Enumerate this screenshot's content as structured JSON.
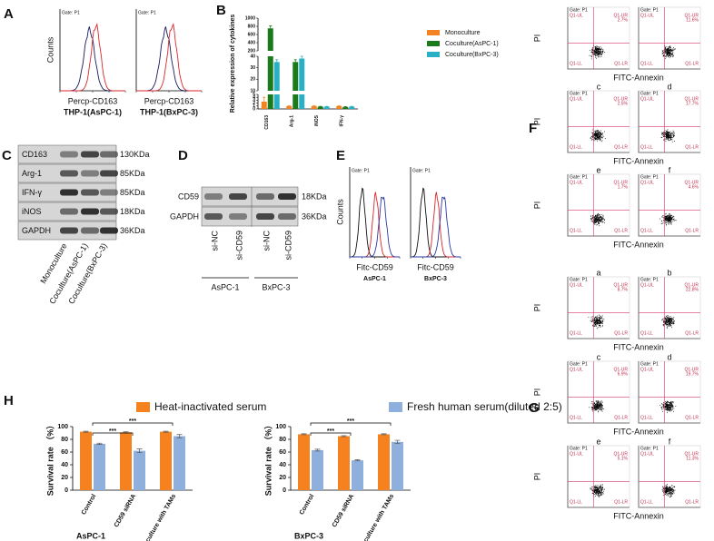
{
  "A": {
    "label": "A",
    "ylabel": "Counts",
    "plots": [
      {
        "gate": "Gate: P1",
        "xlabel": "Percp-CD163",
        "caption": "THP-1(AsPC-1)"
      },
      {
        "gate": "Gate: P1",
        "xlabel": "Percp-CD163",
        "caption": "THP-1(BxPC-3)"
      }
    ]
  },
  "B": {
    "label": "B",
    "chart": {
      "type": "bar",
      "ylabel": "Relative expression of cytokines",
      "categories": [
        "CD163",
        "Arg-1",
        "iNOS",
        "IFN-γ"
      ],
      "series": [
        {
          "name": "Monoculture",
          "color": "#f58220",
          "values": [
            2.5,
            1,
            1,
            1
          ],
          "errors": [
            1.5,
            0.1,
            0.1,
            0.1
          ]
        },
        {
          "name": "Coculture(AsPC-1)",
          "color": "#1b7a1b",
          "values": [
            750,
            35,
            0.8,
            0.7
          ],
          "errors": [
            60,
            2,
            0.1,
            0.1
          ]
        },
        {
          "name": "Coculture(BxPC-3)",
          "color": "#2ab0c5",
          "values": [
            35,
            38,
            0.8,
            0.8
          ],
          "errors": [
            2,
            2,
            0.1,
            0.1
          ]
        }
      ],
      "segments": [
        {
          "ylim": [
            0,
            5
          ],
          "yticks": [
            0,
            1,
            2,
            3,
            4,
            5
          ]
        },
        {
          "ylim": [
            10,
            40
          ],
          "yticks": [
            10,
            20,
            30,
            40
          ]
        },
        {
          "ylim": [
            200,
            1000
          ],
          "yticks": [
            200,
            400,
            600,
            800,
            1000
          ]
        }
      ]
    }
  },
  "C": {
    "label": "C",
    "rows": [
      {
        "name": "CD163",
        "size": "130KDa"
      },
      {
        "name": "Arg-1",
        "size": "85KDa"
      },
      {
        "name": "IFN-γ",
        "size": "85KDa"
      },
      {
        "name": "iNOS",
        "size": "18KDa"
      },
      {
        "name": "GAPDH",
        "size": "36KDa"
      }
    ],
    "lanes": [
      "Monoculture",
      "Coculture(AsPC-1)",
      "Coculture(BxPC-3)"
    ]
  },
  "D": {
    "label": "D",
    "rows": [
      {
        "name": "CD59",
        "size": "18KDa"
      },
      {
        "name": "GAPDH",
        "size": "36KDa"
      }
    ],
    "lanes": [
      "si-NC",
      "si-CD59",
      "si-NC",
      "si-CD59"
    ],
    "groups": [
      "AsPC-1",
      "BxPC-3"
    ]
  },
  "E": {
    "label": "E",
    "ylabel": "Counts",
    "plots": [
      {
        "gate": "Gate: P1",
        "xlabel": "Fitc-CD59",
        "caption": "AsPC-1"
      },
      {
        "gate": "Gate: P1",
        "xlabel": "Fitc-CD59",
        "caption": "BxPC-3"
      }
    ]
  },
  "F": {
    "label": "F",
    "ylabel": "PI",
    "xlabel": "FITC-Annexin",
    "gate": "Gate: P1",
    "quadrants": [
      "Q1-UL",
      "Q1-UR",
      "Q1-LL",
      "Q1-LR"
    ],
    "rows": [
      [
        {
          "ur": "2.7%"
        },
        {
          "ur": "11.6%"
        }
      ],
      [
        {
          "letter": "c",
          "ur": "2.5%"
        },
        {
          "letter": "d",
          "ur": "17.7%"
        }
      ],
      [
        {
          "letter": "e",
          "ur": "1.7%"
        },
        {
          "letter": "f",
          "ur": "4.6%"
        }
      ]
    ]
  },
  "G": {
    "label": "G",
    "ylabel": "PI",
    "xlabel": "FITC-Annexin",
    "gate": "Gate: P1",
    "quadrants": [
      "Q1-UL",
      "Q1-UR",
      "Q1-LL",
      "Q1-LR"
    ],
    "rows": [
      [
        {
          "letter": "a",
          "ur": "8.7%"
        },
        {
          "letter": "b",
          "ur": "22.8%"
        }
      ],
      [
        {
          "letter": "c",
          "ur": "6.9%"
        },
        {
          "letter": "d",
          "ur": "19.7%"
        }
      ],
      [
        {
          "letter": "e",
          "ur": "5.1%"
        },
        {
          "letter": "f",
          "ur": "11.3%"
        }
      ]
    ]
  },
  "H": {
    "label": "H",
    "legend": [
      {
        "name": "Heat-inactivated serum",
        "color": "#f5821f"
      },
      {
        "name": "Fresh human serum(diluted 2:5)",
        "color": "#8fb0dc"
      }
    ],
    "charts": [
      {
        "type": "bar",
        "title": "AsPC-1",
        "ylabel": "Survival rate （%）",
        "categories": [
          "Control",
          "CD59 siRNA",
          "Coculture with TAMs"
        ],
        "ylim": [
          0,
          100
        ],
        "yticks": [
          0,
          20,
          40,
          60,
          80,
          100
        ],
        "significance": [
          "***",
          "***"
        ],
        "series": [
          {
            "values": [
              92,
              91,
              92
            ],
            "errors": [
              0.8,
              0.8,
              0.8
            ]
          },
          {
            "values": [
              73,
              62,
              85
            ],
            "errors": [
              1,
              3,
              2.5
            ]
          }
        ]
      },
      {
        "type": "bar",
        "title": "BxPC-3",
        "ylabel": "Survival rate （%）",
        "categories": [
          "Control",
          "CD59 siRNA",
          "Coculture with TAMs"
        ],
        "ylim": [
          0,
          100
        ],
        "yticks": [
          0,
          20,
          40,
          60,
          80,
          100
        ],
        "significance": [
          "***",
          "***"
        ],
        "series": [
          {
            "values": [
              88,
              85,
              88
            ],
            "errors": [
              0.8,
              0.8,
              0.8
            ]
          },
          {
            "values": [
              63,
              47,
              76
            ],
            "errors": [
              1.5,
              1,
              2.5
            ]
          }
        ]
      }
    ]
  }
}
